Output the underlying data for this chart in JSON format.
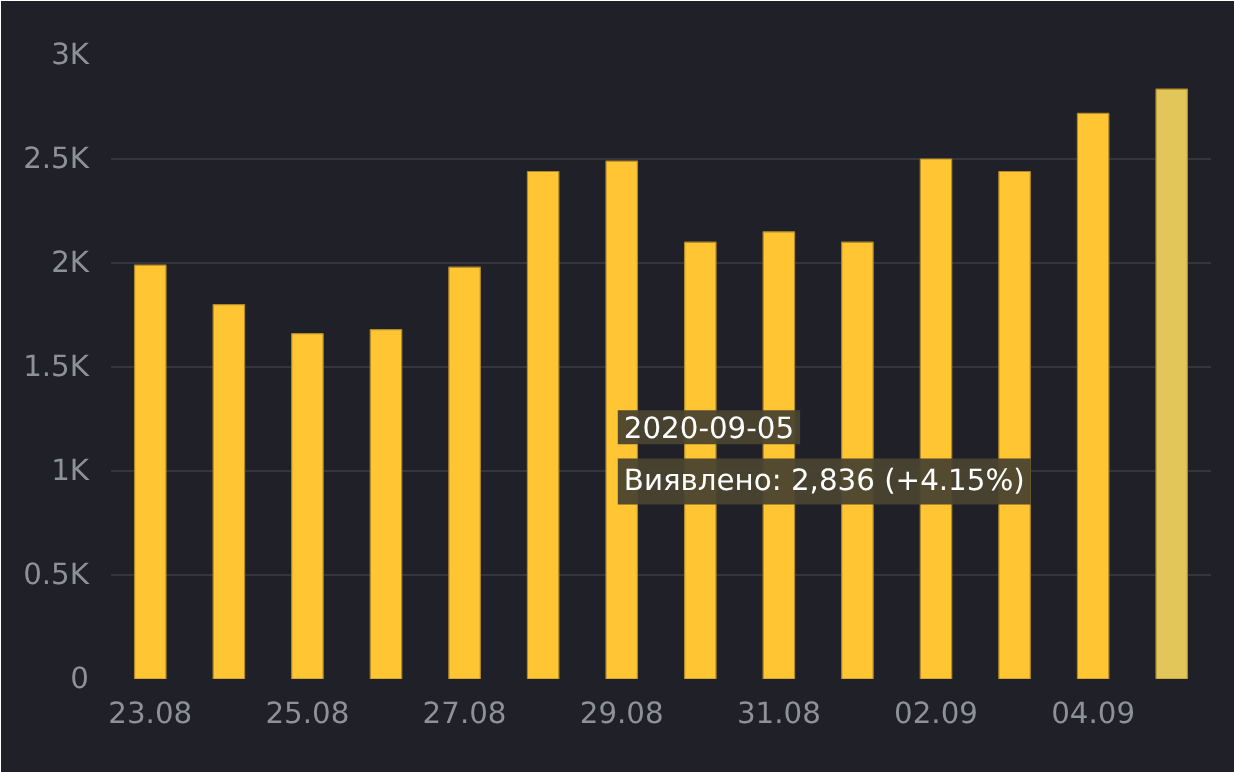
{
  "chart_data": {
    "type": "bar",
    "categories": [
      "23.08",
      null,
      "25.08",
      null,
      "27.08",
      null,
      "29.08",
      null,
      "31.08",
      null,
      "02.09",
      null,
      "04.09",
      null
    ],
    "series": [
      {
        "colors": [
          "#ffc533",
          "#ffc533",
          "#ffc533",
          "#ffc533",
          "#ffc533",
          "#ffc533",
          "#ffc533",
          "#ffc533",
          "#ffc533",
          "#ffc533",
          "#ffc533",
          "#ffc533",
          "#ffc533",
          "#e2c65a"
        ],
        "values": [
          1990,
          1800,
          1660,
          1680,
          1980,
          2440,
          2490,
          2100,
          2150,
          2100,
          2500,
          2440,
          2720,
          2836
        ]
      }
    ],
    "ylim": [
      0,
      3000
    ],
    "yticks": [
      {
        "value": 0,
        "label": "0"
      },
      {
        "value": 500,
        "label": "0.5K"
      },
      {
        "value": 1000,
        "label": "1K"
      },
      {
        "value": 1500,
        "label": "1.5K"
      },
      {
        "value": 2000,
        "label": "2K"
      },
      {
        "value": 2500,
        "label": "2.5K"
      },
      {
        "value": 3000,
        "label": "3K"
      }
    ],
    "grid": "y",
    "annotations": [
      "2020-09-05",
      "Виявлено: 2,836 (+4.15%)"
    ]
  }
}
